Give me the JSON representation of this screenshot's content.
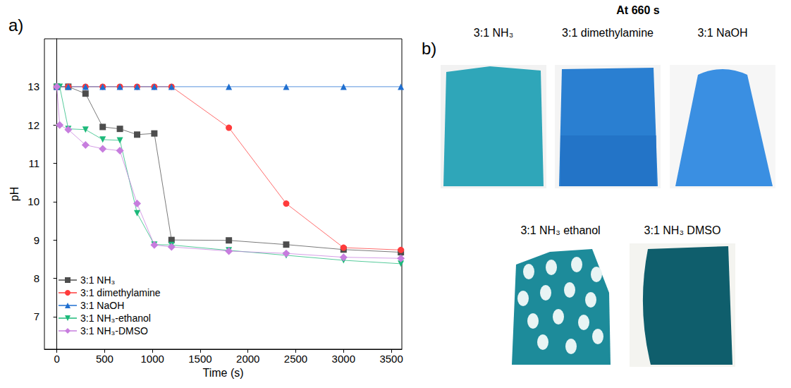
{
  "chart_panel_label": "a)",
  "chart_data": {
    "type": "line",
    "x_label": "Time (s)",
    "y_label": "pH",
    "xlim": [
      -130,
      3610
    ],
    "xticks": [
      0,
      500,
      1000,
      1500,
      2000,
      2500,
      3000,
      3500
    ],
    "ylim": [
      6.15,
      14.25
    ],
    "yticks": [
      7,
      8,
      9,
      10,
      11,
      12,
      13
    ],
    "grid": false,
    "legend": "lower left",
    "series": [
      {
        "name": "3:1 NH₃",
        "color": "#4d4d4d",
        "marker": "square",
        "x": [
          0,
          120,
          300,
          480,
          660,
          840,
          1020,
          1200,
          1800,
          2400,
          3000,
          3600
        ],
        "values": [
          13,
          13,
          12.82,
          11.95,
          11.9,
          11.75,
          11.78,
          9.0,
          8.99,
          8.88,
          8.75,
          8.68
        ]
      },
      {
        "name": "3:1 dimethylamine",
        "color": "#ff3b3b",
        "marker": "circle",
        "x": [
          0,
          120,
          300,
          480,
          660,
          840,
          1020,
          1200,
          1800,
          2400,
          3000,
          3600
        ],
        "values": [
          13,
          13,
          13,
          13,
          13,
          13,
          13,
          13,
          11.93,
          9.95,
          8.8,
          8.74
        ]
      },
      {
        "name": "3:1 NaOH",
        "color": "#1f6fd0",
        "marker": "triangle",
        "x": [
          0,
          120,
          300,
          480,
          660,
          840,
          1020,
          1200,
          1800,
          2400,
          3000,
          3600
        ],
        "values": [
          13,
          13,
          13,
          13,
          13,
          13,
          13,
          13,
          13,
          13,
          13,
          13
        ]
      },
      {
        "name": "3:1 NH₃-ethanol",
        "color": "#1db97a",
        "marker": "triangle-down",
        "x": [
          0,
          30,
          120,
          300,
          480,
          660,
          840,
          1020,
          1200,
          1800,
          2400,
          3000,
          3600
        ],
        "values": [
          13,
          13,
          11.9,
          11.88,
          11.62,
          11.6,
          9.7,
          8.88,
          8.87,
          8.73,
          8.6,
          8.47,
          8.38
        ]
      },
      {
        "name": "3:1 NH₃-DMSO",
        "color": "#c77dde",
        "marker": "diamond",
        "x": [
          0,
          30,
          120,
          300,
          480,
          660,
          840,
          1020,
          1200,
          1800,
          2400,
          3000,
          3600
        ],
        "values": [
          13,
          12.0,
          11.88,
          11.48,
          11.38,
          11.33,
          9.95,
          8.87,
          8.82,
          8.71,
          8.65,
          8.55,
          8.52
        ]
      }
    ]
  },
  "photo_panel": {
    "label": "b)",
    "title": "At 660 s",
    "captions": [
      "3:1 NH₃",
      "3:1 dimethylamine",
      "3:1 NaOH",
      "3:1 NH₃ ethanol",
      "3:1 NH₃ DMSO"
    ]
  }
}
